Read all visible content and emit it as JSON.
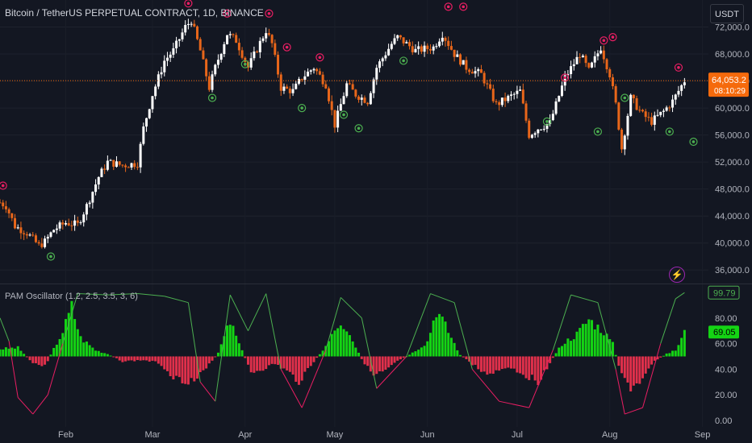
{
  "header": {
    "title": "Bitcoin / TetherUS PERPETUAL CONTRACT, 1D, BINANCE",
    "currency_button": "USDT"
  },
  "oscillator": {
    "title": "PAM Oscillator (1.2, 2.5, 3.5, 3, 6)"
  },
  "price_axis": {
    "ticks": [
      "72,000.0",
      "68,000.0",
      "64,000.0",
      "60,000.0",
      "56,000.0",
      "52,000.0",
      "48,000.0",
      "44,000.0",
      "40,000.0",
      "36,000.0"
    ],
    "current_price": "64,053.2",
    "countdown": "08:10:29"
  },
  "osc_axis": {
    "ticks": [
      "80.00",
      "60.00",
      "40.00",
      "20.00",
      "0.00"
    ],
    "label_green_line": "99.79",
    "label_histogram": "69.05"
  },
  "time_axis": {
    "labels": [
      "Feb",
      "Mar",
      "Apr",
      "May",
      "Jun",
      "Jul",
      "Aug",
      "Sep"
    ]
  },
  "colors": {
    "background": "#131722",
    "candle_up": "#ffffff",
    "candle_down": "#e8661a",
    "current_price_label": "#f56a0c",
    "buy_marker": "#4caf50",
    "sell_marker": "#e91e63",
    "hist_positive": "#14d414",
    "hist_negative": "#e0304b",
    "osc_line_high": "#4caf50",
    "osc_line_low": "#e91e63"
  },
  "icons": {
    "alert": "lightning-bolt-icon"
  },
  "chart_data": [
    {
      "type": "candlestick",
      "title": "Bitcoin / TetherUS PERPETUAL CONTRACT, 1D, BINANCE",
      "ylim": [
        34000,
        76000
      ],
      "x_range": [
        "2024-01-10",
        "2024-09-03"
      ],
      "current_price": 64053.2,
      "close_path": [
        [
          "2024-01-10",
          46000
        ],
        [
          "2024-01-12",
          45500
        ],
        [
          "2024-01-15",
          42500
        ],
        [
          "2024-01-19",
          41500
        ],
        [
          "2024-01-23",
          39600
        ],
        [
          "2024-01-25",
          40200
        ],
        [
          "2024-01-28",
          42000
        ],
        [
          "2024-02-01",
          43000
        ],
        [
          "2024-02-05",
          42700
        ],
        [
          "2024-02-08",
          45500
        ],
        [
          "2024-02-12",
          49800
        ],
        [
          "2024-02-15",
          52000
        ],
        [
          "2024-02-20",
          51500
        ],
        [
          "2024-02-25",
          51800
        ],
        [
          "2024-02-27",
          57000
        ],
        [
          "2024-03-01",
          62000
        ],
        [
          "2024-03-05",
          67000
        ],
        [
          "2024-03-08",
          68500
        ],
        [
          "2024-03-12",
          72000
        ],
        [
          "2024-03-14",
          73000
        ],
        [
          "2024-03-17",
          68500
        ],
        [
          "2024-03-20",
          63000
        ],
        [
          "2024-03-22",
          66000
        ],
        [
          "2024-03-26",
          71000
        ],
        [
          "2024-03-29",
          70000
        ],
        [
          "2024-04-02",
          66000
        ],
        [
          "2024-04-08",
          71500
        ],
        [
          "2024-04-10",
          69500
        ],
        [
          "2024-04-13",
          63000
        ],
        [
          "2024-04-17",
          62500
        ],
        [
          "2024-04-20",
          64500
        ],
        [
          "2024-04-24",
          66000
        ],
        [
          "2024-04-28",
          63500
        ],
        [
          "2024-05-01",
          57500
        ],
        [
          "2024-05-05",
          63500
        ],
        [
          "2024-05-08",
          62000
        ],
        [
          "2024-05-12",
          61000
        ],
        [
          "2024-05-15",
          66000
        ],
        [
          "2024-05-20",
          69500
        ],
        [
          "2024-05-22",
          70500
        ],
        [
          "2024-05-28",
          68500
        ],
        [
          "2024-06-03",
          69000
        ],
        [
          "2024-06-06",
          71000
        ],
        [
          "2024-06-10",
          68000
        ],
        [
          "2024-06-14",
          66000
        ],
        [
          "2024-06-19",
          65000
        ],
        [
          "2024-06-24",
          60500
        ],
        [
          "2024-06-28",
          61500
        ],
        [
          "2024-07-02",
          62500
        ],
        [
          "2024-07-05",
          56000
        ],
        [
          "2024-07-08",
          57000
        ],
        [
          "2024-07-12",
          57800
        ],
        [
          "2024-07-17",
          64500
        ],
        [
          "2024-07-22",
          68000
        ],
        [
          "2024-07-25",
          65500
        ],
        [
          "2024-07-29",
          69000
        ],
        [
          "2024-08-01",
          65000
        ],
        [
          "2024-08-03",
          60500
        ],
        [
          "2024-08-05",
          54000
        ],
        [
          "2024-08-08",
          61500
        ],
        [
          "2024-08-12",
          59000
        ],
        [
          "2024-08-15",
          58000
        ],
        [
          "2024-08-19",
          59500
        ],
        [
          "2024-08-22",
          61000
        ],
        [
          "2024-08-26",
          64053.2
        ]
      ],
      "sell_markers": [
        [
          "2024-01-11",
          48500
        ],
        [
          "2024-03-13",
          75500
        ],
        [
          "2024-03-26",
          74000
        ],
        [
          "2024-04-09",
          74000
        ],
        [
          "2024-04-15",
          69000
        ],
        [
          "2024-04-26",
          67500
        ],
        [
          "2024-06-08",
          75000
        ],
        [
          "2024-06-13",
          75000
        ],
        [
          "2024-07-17",
          64500
        ],
        [
          "2024-07-30",
          70000
        ],
        [
          "2024-08-02",
          70500
        ],
        [
          "2024-08-24",
          66000
        ]
      ],
      "buy_markers": [
        [
          "2024-01-27",
          38000
        ],
        [
          "2024-03-21",
          61500
        ],
        [
          "2024-04-01",
          66500
        ],
        [
          "2024-04-20",
          60000
        ],
        [
          "2024-05-04",
          59000
        ],
        [
          "2024-05-09",
          57000
        ],
        [
          "2024-05-24",
          67000
        ],
        [
          "2024-07-11",
          58000
        ],
        [
          "2024-07-28",
          56500
        ],
        [
          "2024-08-06",
          61500
        ],
        [
          "2024-08-21",
          56500
        ],
        [
          "2024-08-29",
          55000
        ]
      ]
    },
    {
      "type": "bar+line",
      "title": "PAM Oscillator (1.2, 2.5, 3.5, 3, 6)",
      "ylim": [
        -5,
        105
      ],
      "baseline": 50,
      "histogram_peaks": [
        [
          "2024-01-10",
          56
        ],
        [
          "2024-01-16",
          57
        ],
        [
          "2024-01-21",
          45
        ],
        [
          "2024-01-25",
          42
        ],
        [
          "2024-01-31",
          70
        ],
        [
          "2024-02-03",
          90
        ],
        [
          "2024-02-06",
          65
        ],
        [
          "2024-02-11",
          55
        ],
        [
          "2024-02-15",
          52
        ],
        [
          "2024-02-20",
          46
        ],
        [
          "2024-02-27",
          47
        ],
        [
          "2024-03-03",
          45
        ],
        [
          "2024-03-09",
          32
        ],
        [
          "2024-03-15",
          30
        ],
        [
          "2024-03-19",
          40
        ],
        [
          "2024-03-23",
          53
        ],
        [
          "2024-03-27",
          78
        ],
        [
          "2024-03-30",
          60
        ],
        [
          "2024-04-03",
          37
        ],
        [
          "2024-04-07",
          40
        ],
        [
          "2024-04-11",
          44
        ],
        [
          "2024-04-15",
          38
        ],
        [
          "2024-04-19",
          30
        ],
        [
          "2024-04-23",
          43
        ],
        [
          "2024-04-28",
          58
        ],
        [
          "2024-05-02",
          75
        ],
        [
          "2024-05-06",
          66
        ],
        [
          "2024-05-10",
          48
        ],
        [
          "2024-05-14",
          34
        ],
        [
          "2024-05-18",
          38
        ],
        [
          "2024-05-22",
          46
        ],
        [
          "2024-05-27",
          53
        ],
        [
          "2024-06-01",
          62
        ],
        [
          "2024-06-04",
          88
        ],
        [
          "2024-06-08",
          70
        ],
        [
          "2024-06-12",
          51
        ],
        [
          "2024-06-16",
          44
        ],
        [
          "2024-06-20",
          36
        ],
        [
          "2024-06-24",
          38
        ],
        [
          "2024-06-28",
          42
        ],
        [
          "2024-07-03",
          36
        ],
        [
          "2024-07-08",
          30
        ],
        [
          "2024-07-12",
          45
        ],
        [
          "2024-07-16",
          60
        ],
        [
          "2024-07-21",
          68
        ],
        [
          "2024-07-25",
          80
        ],
        [
          "2024-07-30",
          70
        ],
        [
          "2024-08-02",
          60
        ],
        [
          "2024-08-05",
          34
        ],
        [
          "2024-08-08",
          25
        ],
        [
          "2024-08-12",
          31
        ],
        [
          "2024-08-16",
          46
        ],
        [
          "2024-08-20",
          52
        ],
        [
          "2024-08-23",
          55
        ],
        [
          "2024-08-26",
          69.05
        ]
      ],
      "line": [
        [
          "2024-01-10",
          80
        ],
        [
          "2024-01-13",
          62
        ],
        [
          "2024-01-16",
          18
        ],
        [
          "2024-01-21",
          5
        ],
        [
          "2024-01-26",
          20
        ],
        [
          "2024-01-31",
          60
        ],
        [
          "2024-02-05",
          99
        ],
        [
          "2024-02-15",
          98
        ],
        [
          "2024-02-25",
          99
        ],
        [
          "2024-03-05",
          97
        ],
        [
          "2024-03-13",
          92
        ],
        [
          "2024-03-17",
          30
        ],
        [
          "2024-03-22",
          15
        ],
        [
          "2024-03-27",
          98
        ],
        [
          "2024-04-02",
          70
        ],
        [
          "2024-04-08",
          99
        ],
        [
          "2024-04-13",
          40
        ],
        [
          "2024-04-20",
          10
        ],
        [
          "2024-04-28",
          55
        ],
        [
          "2024-05-03",
          96
        ],
        [
          "2024-05-10",
          80
        ],
        [
          "2024-05-15",
          25
        ],
        [
          "2024-05-25",
          50
        ],
        [
          "2024-06-02",
          99
        ],
        [
          "2024-06-10",
          92
        ],
        [
          "2024-06-16",
          40
        ],
        [
          "2024-06-25",
          15
        ],
        [
          "2024-07-05",
          10
        ],
        [
          "2024-07-13",
          55
        ],
        [
          "2024-07-19",
          98
        ],
        [
          "2024-07-28",
          92
        ],
        [
          "2024-08-03",
          40
        ],
        [
          "2024-08-06",
          5
        ],
        [
          "2024-08-12",
          10
        ],
        [
          "2024-08-18",
          60
        ],
        [
          "2024-08-23",
          95
        ],
        [
          "2024-08-26",
          99.79
        ]
      ]
    }
  ]
}
